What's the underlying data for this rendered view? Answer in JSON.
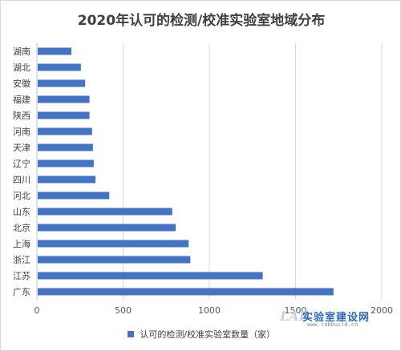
{
  "chart_data": {
    "type": "bar",
    "orientation": "horizontal",
    "title": "2020年认可的检测/校准实验室地域分布",
    "categories": [
      "广东",
      "江苏",
      "浙江",
      "上海",
      "北京",
      "山东",
      "河北",
      "四川",
      "辽宁",
      "天津",
      "河南",
      "陕西",
      "福建",
      "安徽",
      "湖北",
      "湖南"
    ],
    "series": [
      {
        "name": "认可的检测/校准实验室数量（家）",
        "values": [
          1720,
          1310,
          890,
          880,
          805,
          785,
          420,
          340,
          330,
          325,
          320,
          305,
          305,
          280,
          255,
          200
        ],
        "color": "#4472c4"
      }
    ],
    "xlim": [
      0,
      2000
    ],
    "xticks": [
      "0",
      "500",
      "1000",
      "1500",
      "2000"
    ],
    "xlabel": "",
    "ylabel": "",
    "grid": "vertical",
    "legend_position": "bottom"
  },
  "watermark": {
    "logo": "LAB",
    "name": "实验室建设网",
    "url": "www.labbuild.cn"
  }
}
